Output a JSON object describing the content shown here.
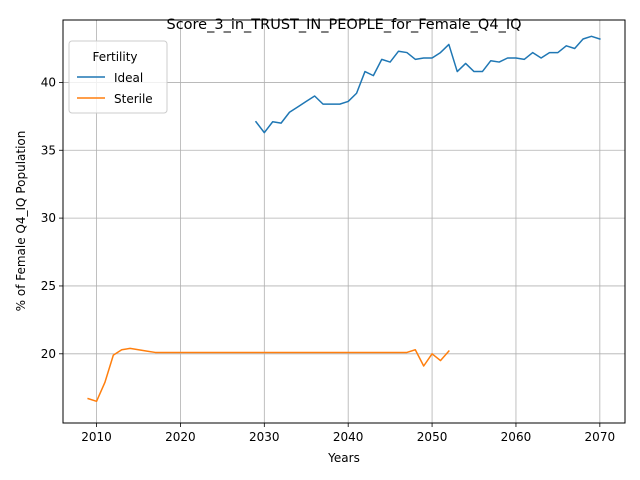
{
  "chart_data": {
    "type": "line",
    "title": "Score_3_in_TRUST_IN_PEOPLE_for_Female_Q4_IQ",
    "xlabel": "Years",
    "ylabel": "% of Female Q4_IQ Population",
    "xlim": [
      2006,
      2073
    ],
    "ylim": [
      14.9,
      44.6
    ],
    "xticks": [
      2010,
      2020,
      2030,
      2040,
      2050,
      2060,
      2070
    ],
    "yticks": [
      20,
      25,
      30,
      35,
      40
    ],
    "grid": true,
    "legend": {
      "title": "Fertility",
      "position": "top-left"
    },
    "series": [
      {
        "name": "Ideal",
        "color": "#1f77b4",
        "x": [
          2029,
          2030,
          2031,
          2032,
          2033,
          2034,
          2035,
          2036,
          2037,
          2038,
          2039,
          2040,
          2041,
          2042,
          2043,
          2044,
          2045,
          2046,
          2047,
          2048,
          2049,
          2050,
          2051,
          2052,
          2053,
          2054,
          2055,
          2056,
          2057,
          2058,
          2059,
          2060,
          2061,
          2062,
          2063,
          2064,
          2065,
          2066,
          2067,
          2068,
          2069,
          2070
        ],
        "y": [
          37.1,
          36.3,
          37.1,
          37.0,
          37.8,
          38.2,
          38.6,
          39.0,
          38.4,
          38.4,
          38.4,
          38.6,
          39.2,
          40.8,
          40.5,
          41.7,
          41.5,
          42.3,
          42.2,
          41.7,
          41.8,
          41.8,
          42.2,
          42.8,
          40.8,
          41.4,
          40.8,
          40.8,
          41.6,
          41.5,
          41.8,
          41.8,
          41.7,
          42.2,
          41.8,
          42.2,
          42.2,
          42.7,
          42.5,
          43.2,
          43.4,
          43.2
        ]
      },
      {
        "name": "Sterile",
        "color": "#ff7f0e",
        "x": [
          2009,
          2010,
          2011,
          2012,
          2013,
          2014,
          2015,
          2016,
          2017,
          2018,
          2019,
          2020,
          2021,
          2022,
          2023,
          2024,
          2025,
          2026,
          2027,
          2028,
          2029,
          2030,
          2031,
          2032,
          2033,
          2034,
          2035,
          2036,
          2037,
          2038,
          2039,
          2040,
          2041,
          2042,
          2043,
          2044,
          2045,
          2046,
          2047,
          2048,
          2049,
          2050,
          2051,
          2052
        ],
        "y": [
          16.7,
          16.5,
          17.9,
          19.9,
          20.3,
          20.4,
          20.3,
          20.2,
          20.1,
          20.1,
          20.1,
          20.1,
          20.1,
          20.1,
          20.1,
          20.1,
          20.1,
          20.1,
          20.1,
          20.1,
          20.1,
          20.1,
          20.1,
          20.1,
          20.1,
          20.1,
          20.1,
          20.1,
          20.1,
          20.1,
          20.1,
          20.1,
          20.1,
          20.1,
          20.1,
          20.1,
          20.1,
          20.1,
          20.1,
          20.3,
          19.1,
          20.0,
          19.5,
          20.2
        ]
      }
    ]
  }
}
